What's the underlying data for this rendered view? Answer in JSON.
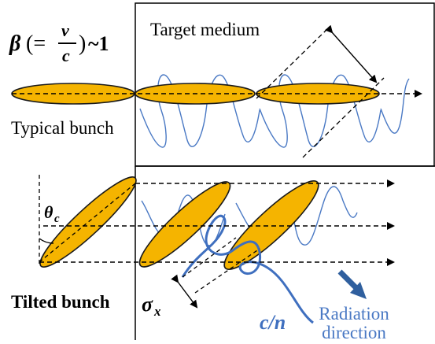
{
  "labels": {
    "beta_symbol": "β",
    "beta_eq_open": "(=",
    "beta_v": "v",
    "beta_c": "c",
    "beta_close": ")",
    "beta_tilde_one": "~1",
    "target_medium": "Target medium",
    "typical_bunch": "Typical bunch",
    "tilted_bunch": "Tilted bunch",
    "theta_symbol": "θ",
    "theta_sub": "c",
    "sigma_symbol": "σ",
    "sigma_sub": "x",
    "c_over_n": "c/n",
    "radiation_line1": "Radiation",
    "radiation_line2": "direction"
  },
  "colors": {
    "bunch_fill": "#f5b400",
    "bunch_stroke": "#1a1a1a",
    "wave": "#4a79c4",
    "wave_bold": "#3f6fbf",
    "radiation_text": "#4a79c4",
    "arrow_fill": "#2f5f9e",
    "line": "#000000"
  }
}
